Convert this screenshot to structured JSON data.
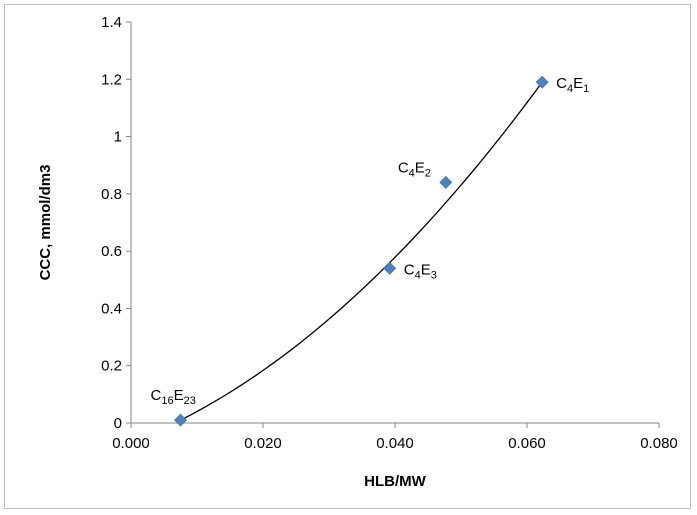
{
  "chart_data": {
    "type": "scatter",
    "title": "",
    "xlabel": "HLB/MW",
    "ylabel": "CCC, mmol/dm3",
    "xlim": [
      0.0,
      0.08
    ],
    "ylim": [
      0.0,
      1.4
    ],
    "x_ticks": [
      "0.000",
      "0.020",
      "0.040",
      "0.060",
      "0.080"
    ],
    "y_ticks": [
      "0",
      "0.2",
      "0.4",
      "0.6",
      "0.8",
      "1",
      "1.2",
      "1.4"
    ],
    "grid": false,
    "legend": "none",
    "marker_color": "#4f81bd",
    "trendline_color": "#000000",
    "series": [
      {
        "points": [
          {
            "x": 0.0075,
            "y": 0.01,
            "label_main": "C16",
            "label_sub": "E23",
            "label_parts": [
              [
                "C",
                ""
              ],
              [
                "16",
                "sub"
              ],
              [
                "E",
                ""
              ],
              [
                "23",
                "sub"
              ]
            ]
          },
          {
            "x": 0.0392,
            "y": 0.54,
            "label_main": "C4",
            "label_sub": "E3",
            "label_parts": [
              [
                "C",
                ""
              ],
              [
                "4",
                "sub"
              ],
              [
                "E",
                ""
              ],
              [
                "3",
                "sub"
              ]
            ]
          },
          {
            "x": 0.0477,
            "y": 0.84,
            "label_main": "C4",
            "label_sub": "E2",
            "label_parts": [
              [
                "C",
                ""
              ],
              [
                "4",
                "sub"
              ],
              [
                "E",
                ""
              ],
              [
                "2",
                "sub"
              ]
            ]
          },
          {
            "x": 0.0623,
            "y": 1.19,
            "label_main": "C4",
            "label_sub": "E1",
            "label_parts": [
              [
                "C",
                ""
              ],
              [
                "4",
                "sub"
              ],
              [
                "E",
                ""
              ],
              [
                "1",
                "sub"
              ]
            ]
          }
        ]
      }
    ],
    "trendline": {
      "type": "polynomial",
      "x_range": [
        0.0075,
        0.0623
      ],
      "samples": [
        {
          "x": 0.0075,
          "y": 0.01
        },
        {
          "x": 0.0392,
          "y": 0.56
        },
        {
          "x": 0.0623,
          "y": 1.19
        }
      ]
    }
  }
}
